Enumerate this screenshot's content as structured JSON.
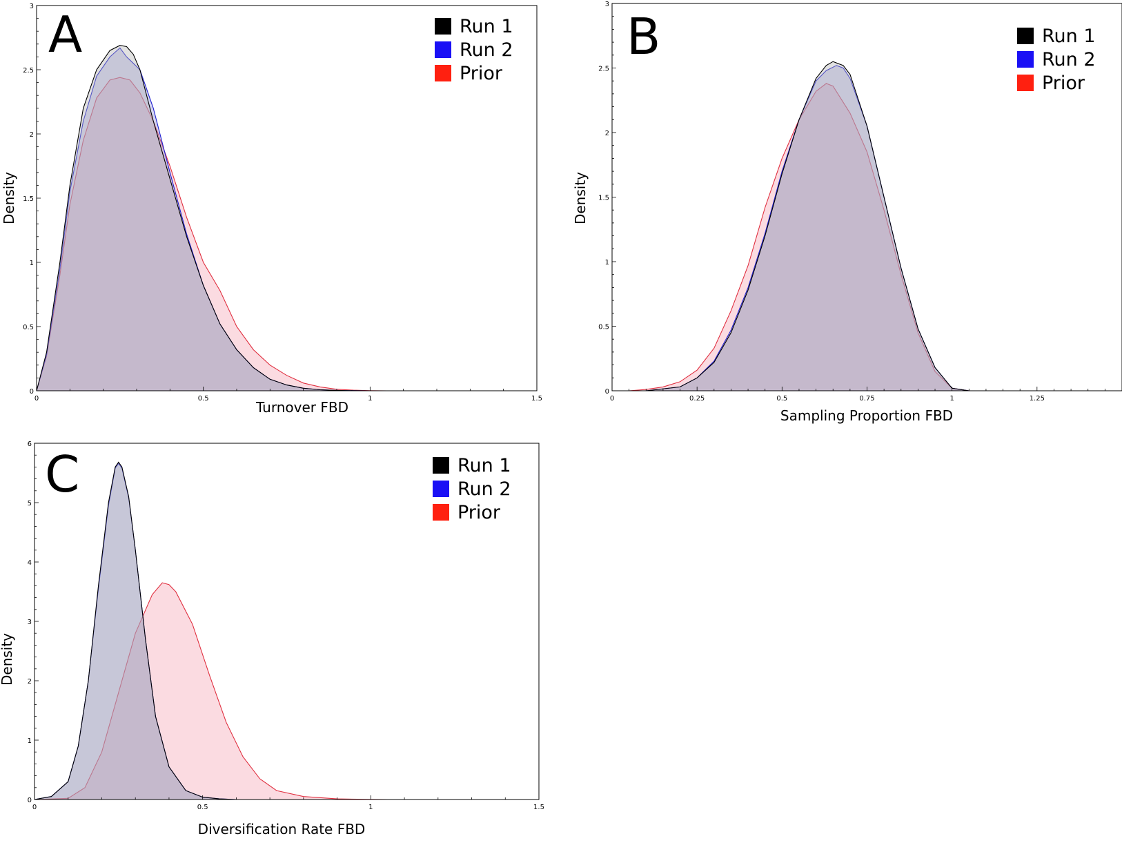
{
  "colors": {
    "run1_stroke": "#000000",
    "run1_fill": "#b0b0b0",
    "run2_stroke": "#2020d0",
    "run2_fill": "#9090d8",
    "prior_stroke": "#e03040",
    "prior_fill": "#f5a0b0",
    "legend_run1": "#000000",
    "legend_run2": "#1a10f5",
    "legend_prior": "#ff2010"
  },
  "chart_data": [
    {
      "type": "area",
      "panel": "A",
      "xlabel": "Turnover FBD",
      "ylabel": "Density",
      "xlim": [
        0,
        1.5
      ],
      "ylim": [
        0,
        3
      ],
      "xticks": [
        "0",
        "0.5",
        "1",
        "1.5"
      ],
      "yticks": [
        "0",
        "0.5",
        "1",
        "1.5",
        "2",
        "2.5",
        "3"
      ],
      "grid": false,
      "legend_position": "top-right",
      "series": [
        {
          "name": "Run 1",
          "x": [
            0,
            0.03,
            0.07,
            0.1,
            0.14,
            0.18,
            0.22,
            0.25,
            0.27,
            0.29,
            0.31,
            0.35,
            0.4,
            0.45,
            0.5,
            0.55,
            0.6,
            0.65,
            0.7,
            0.75,
            0.8,
            0.85,
            0.9,
            0.95,
            1.0,
            1.05
          ],
          "y": [
            0,
            0.3,
            1.0,
            1.6,
            2.2,
            2.5,
            2.65,
            2.69,
            2.68,
            2.62,
            2.5,
            2.1,
            1.65,
            1.2,
            0.82,
            0.52,
            0.32,
            0.18,
            0.09,
            0.045,
            0.02,
            0.008,
            0.003,
            0.001,
            0,
            0
          ]
        },
        {
          "name": "Run 2",
          "x": [
            0,
            0.03,
            0.07,
            0.1,
            0.14,
            0.18,
            0.22,
            0.25,
            0.27,
            0.29,
            0.31,
            0.35,
            0.4,
            0.45,
            0.5,
            0.55,
            0.6,
            0.65,
            0.7,
            0.75,
            0.8,
            0.85,
            0.9,
            0.95,
            1.0,
            1.05
          ],
          "y": [
            0,
            0.28,
            0.95,
            1.55,
            2.1,
            2.45,
            2.6,
            2.67,
            2.6,
            2.55,
            2.5,
            2.2,
            1.7,
            1.22,
            0.82,
            0.52,
            0.32,
            0.18,
            0.09,
            0.045,
            0.02,
            0.008,
            0.003,
            0.001,
            0,
            0
          ]
        },
        {
          "name": "Prior",
          "x": [
            0,
            0.03,
            0.07,
            0.1,
            0.14,
            0.18,
            0.22,
            0.25,
            0.28,
            0.31,
            0.35,
            0.4,
            0.45,
            0.5,
            0.55,
            0.6,
            0.65,
            0.7,
            0.75,
            0.8,
            0.85,
            0.9,
            0.95,
            1.0,
            1.05
          ],
          "y": [
            0,
            0.27,
            0.9,
            1.45,
            1.95,
            2.28,
            2.42,
            2.44,
            2.42,
            2.32,
            2.1,
            1.75,
            1.35,
            1.0,
            0.78,
            0.5,
            0.32,
            0.2,
            0.12,
            0.06,
            0.03,
            0.012,
            0.005,
            0.001,
            0
          ]
        }
      ]
    },
    {
      "type": "area",
      "panel": "B",
      "xlabel": "Sampling Proportion FBD",
      "ylabel": "Density",
      "xlim": [
        0,
        1.5
      ],
      "ylim": [
        0,
        3
      ],
      "xticks": [
        "0",
        "0.25",
        "0.5",
        "0.75",
        "1",
        "1.25"
      ],
      "yticks": [
        "0",
        "0.5",
        "1",
        "1.5",
        "2",
        "2.5",
        "3"
      ],
      "grid": false,
      "legend_position": "top-right",
      "series": [
        {
          "name": "Run 1",
          "x": [
            0.1,
            0.2,
            0.25,
            0.3,
            0.35,
            0.4,
            0.45,
            0.5,
            0.55,
            0.6,
            0.63,
            0.65,
            0.68,
            0.7,
            0.75,
            0.8,
            0.85,
            0.9,
            0.95,
            1.0,
            1.05
          ],
          "y": [
            0,
            0.03,
            0.1,
            0.22,
            0.45,
            0.78,
            1.2,
            1.68,
            2.1,
            2.42,
            2.52,
            2.55,
            2.52,
            2.45,
            2.05,
            1.5,
            0.95,
            0.48,
            0.18,
            0.02,
            0
          ]
        },
        {
          "name": "Run 2",
          "x": [
            0.1,
            0.2,
            0.25,
            0.3,
            0.35,
            0.4,
            0.45,
            0.5,
            0.55,
            0.6,
            0.63,
            0.66,
            0.68,
            0.7,
            0.75,
            0.8,
            0.85,
            0.9,
            0.95,
            1.0,
            1.05
          ],
          "y": [
            0,
            0.03,
            0.1,
            0.23,
            0.47,
            0.8,
            1.22,
            1.7,
            2.1,
            2.4,
            2.48,
            2.52,
            2.5,
            2.42,
            2.05,
            1.5,
            0.95,
            0.48,
            0.18,
            0.02,
            0
          ]
        },
        {
          "name": "Prior",
          "x": [
            0.05,
            0.1,
            0.15,
            0.2,
            0.25,
            0.3,
            0.35,
            0.4,
            0.45,
            0.5,
            0.55,
            0.6,
            0.63,
            0.65,
            0.7,
            0.75,
            0.8,
            0.85,
            0.9,
            0.95,
            1.0,
            1.05
          ],
          "y": [
            0,
            0.01,
            0.03,
            0.07,
            0.16,
            0.33,
            0.62,
            0.97,
            1.42,
            1.8,
            2.1,
            2.32,
            2.38,
            2.36,
            2.15,
            1.85,
            1.4,
            0.9,
            0.45,
            0.15,
            0.02,
            0
          ]
        }
      ]
    },
    {
      "type": "area",
      "panel": "C",
      "xlabel": "Diversification Rate FBD",
      "ylabel": "Density",
      "xlim": [
        0,
        1.5
      ],
      "ylim": [
        0,
        6
      ],
      "xticks": [
        "0",
        "0.5",
        "1",
        "1.5"
      ],
      "yticks": [
        "0",
        "1",
        "2",
        "3",
        "4",
        "5",
        "6"
      ],
      "grid": false,
      "legend_position": "top-right",
      "series": [
        {
          "name": "Run 1",
          "x": [
            0,
            0.05,
            0.1,
            0.13,
            0.16,
            0.19,
            0.22,
            0.24,
            0.25,
            0.26,
            0.28,
            0.3,
            0.33,
            0.36,
            0.4,
            0.45,
            0.5,
            0.55,
            0.6
          ],
          "y": [
            0,
            0.05,
            0.3,
            0.9,
            2.0,
            3.6,
            5.0,
            5.6,
            5.68,
            5.6,
            5.1,
            4.2,
            2.7,
            1.4,
            0.55,
            0.15,
            0.04,
            0.01,
            0
          ]
        },
        {
          "name": "Run 2",
          "x": [
            0,
            0.05,
            0.1,
            0.13,
            0.16,
            0.19,
            0.22,
            0.24,
            0.25,
            0.26,
            0.28,
            0.3,
            0.33,
            0.36,
            0.4,
            0.45,
            0.5,
            0.55,
            0.6
          ],
          "y": [
            0,
            0.05,
            0.3,
            0.9,
            2.0,
            3.55,
            4.95,
            5.58,
            5.66,
            5.58,
            5.08,
            4.2,
            2.7,
            1.4,
            0.55,
            0.15,
            0.04,
            0.01,
            0
          ]
        },
        {
          "name": "Prior",
          "x": [
            0,
            0.1,
            0.15,
            0.2,
            0.25,
            0.3,
            0.35,
            0.38,
            0.4,
            0.42,
            0.47,
            0.52,
            0.57,
            0.62,
            0.67,
            0.72,
            0.8,
            0.9,
            1.0,
            1.05
          ],
          "y": [
            0,
            0.02,
            0.2,
            0.8,
            1.8,
            2.8,
            3.45,
            3.65,
            3.62,
            3.5,
            2.95,
            2.1,
            1.3,
            0.72,
            0.35,
            0.15,
            0.05,
            0.01,
            0.002,
            0
          ]
        }
      ]
    }
  ],
  "panels": [
    {
      "letter": "A",
      "xlabel": "Turnover FBD",
      "ylabel": "Density",
      "legend": [
        "Run 1",
        "Run 2",
        "Prior"
      ]
    },
    {
      "letter": "B",
      "xlabel": "Sampling Proportion FBD",
      "ylabel": "Density",
      "legend": [
        "Run 1",
        "Run 2",
        "Prior"
      ]
    },
    {
      "letter": "C",
      "xlabel": "Diversification Rate FBD",
      "ylabel": "Density",
      "legend": [
        "Run 1",
        "Run 2",
        "Prior"
      ]
    }
  ]
}
